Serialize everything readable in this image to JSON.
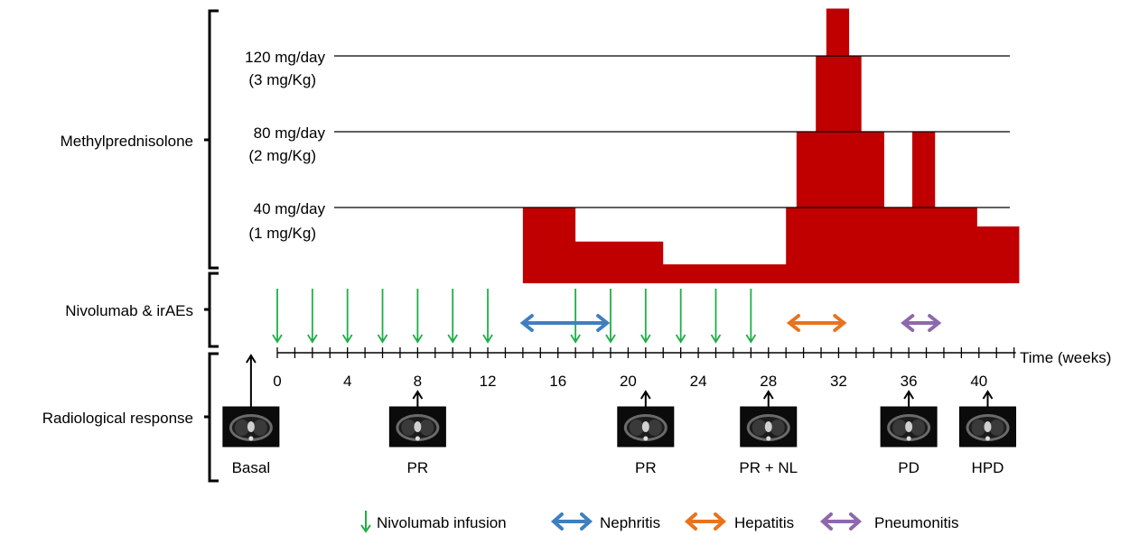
{
  "sections": {
    "steroid": "Methylprednisolone",
    "drug": "Nivolumab & irAEs",
    "radio": "Radiological response"
  },
  "dose_levels": [
    {
      "line1": "120 mg/day",
      "line2": "(3 mg/Kg)",
      "mg": 120
    },
    {
      "line1": "80 mg/day",
      "line2": "(2 mg/Kg)",
      "mg": 80
    },
    {
      "line1": "40 mg/day",
      "line2": "(1 mg/Kg)",
      "mg": 40
    }
  ],
  "dose_profile": {
    "unit": "mg/day",
    "steps": [
      {
        "from": 14,
        "to": 17,
        "mg": 40
      },
      {
        "from": 17,
        "to": 22,
        "mg": 22
      },
      {
        "from": 22,
        "to": 29,
        "mg": 10
      },
      {
        "from": 29,
        "to": 29.6,
        "mg": 40
      },
      {
        "from": 29.6,
        "to": 30.7,
        "mg": 80
      },
      {
        "from": 30.7,
        "to": 31.3,
        "mg": 120
      },
      {
        "from": 31.3,
        "to": 32.6,
        "mg": 145
      },
      {
        "from": 32.6,
        "to": 33.3,
        "mg": 120
      },
      {
        "from": 33.3,
        "to": 34.6,
        "mg": 80
      },
      {
        "from": 34.6,
        "to": 36.2,
        "mg": 40
      },
      {
        "from": 36.2,
        "to": 37.5,
        "mg": 80
      },
      {
        "from": 37.5,
        "to": 39.9,
        "mg": 40
      },
      {
        "from": 39.9,
        "to": 42.3,
        "mg": 30
      }
    ]
  },
  "time_axis": {
    "label": "Time (weeks)",
    "ticks": [
      "0",
      "4",
      "8",
      "12",
      "16",
      "20",
      "24",
      "28",
      "32",
      "36",
      "40"
    ],
    "range": [
      0,
      42
    ]
  },
  "infusions_weeks": [
    0,
    2,
    4,
    6,
    8,
    10,
    12,
    17,
    19,
    21,
    23,
    25,
    27
  ],
  "events": [
    {
      "name": "Nephritis",
      "from": 14,
      "to": 18.8,
      "color": "#3f7fc1"
    },
    {
      "name": "Hepatitis",
      "from": 29.2,
      "to": 32.3,
      "color": "#e8731e"
    },
    {
      "name": "Pneumonitis",
      "from": 35.7,
      "to": 37.7,
      "color": "#8e68ad"
    }
  ],
  "scans": [
    {
      "label": "Basal",
      "week": -1.5
    },
    {
      "label": "PR",
      "week": 8
    },
    {
      "label": "PR",
      "week": 21
    },
    {
      "label": "PR + NL",
      "week": 28
    },
    {
      "label": "PD",
      "week": 36
    },
    {
      "label": "HPD",
      "week": 40.5
    }
  ],
  "legend": [
    {
      "name": "Nivolumab infusion",
      "color": "#1faf47",
      "icon": "down-arrow-icon"
    },
    {
      "name": "Nephritis",
      "color": "#3f7fc1",
      "icon": "double-arrow-icon"
    },
    {
      "name": "Hepatitis",
      "color": "#e8731e",
      "icon": "double-arrow-icon"
    },
    {
      "name": "Pneumonitis",
      "color": "#8e68ad",
      "icon": "double-arrow-icon"
    }
  ],
  "colors": {
    "steroid": "#c00000",
    "infusion": "#1faf47"
  }
}
